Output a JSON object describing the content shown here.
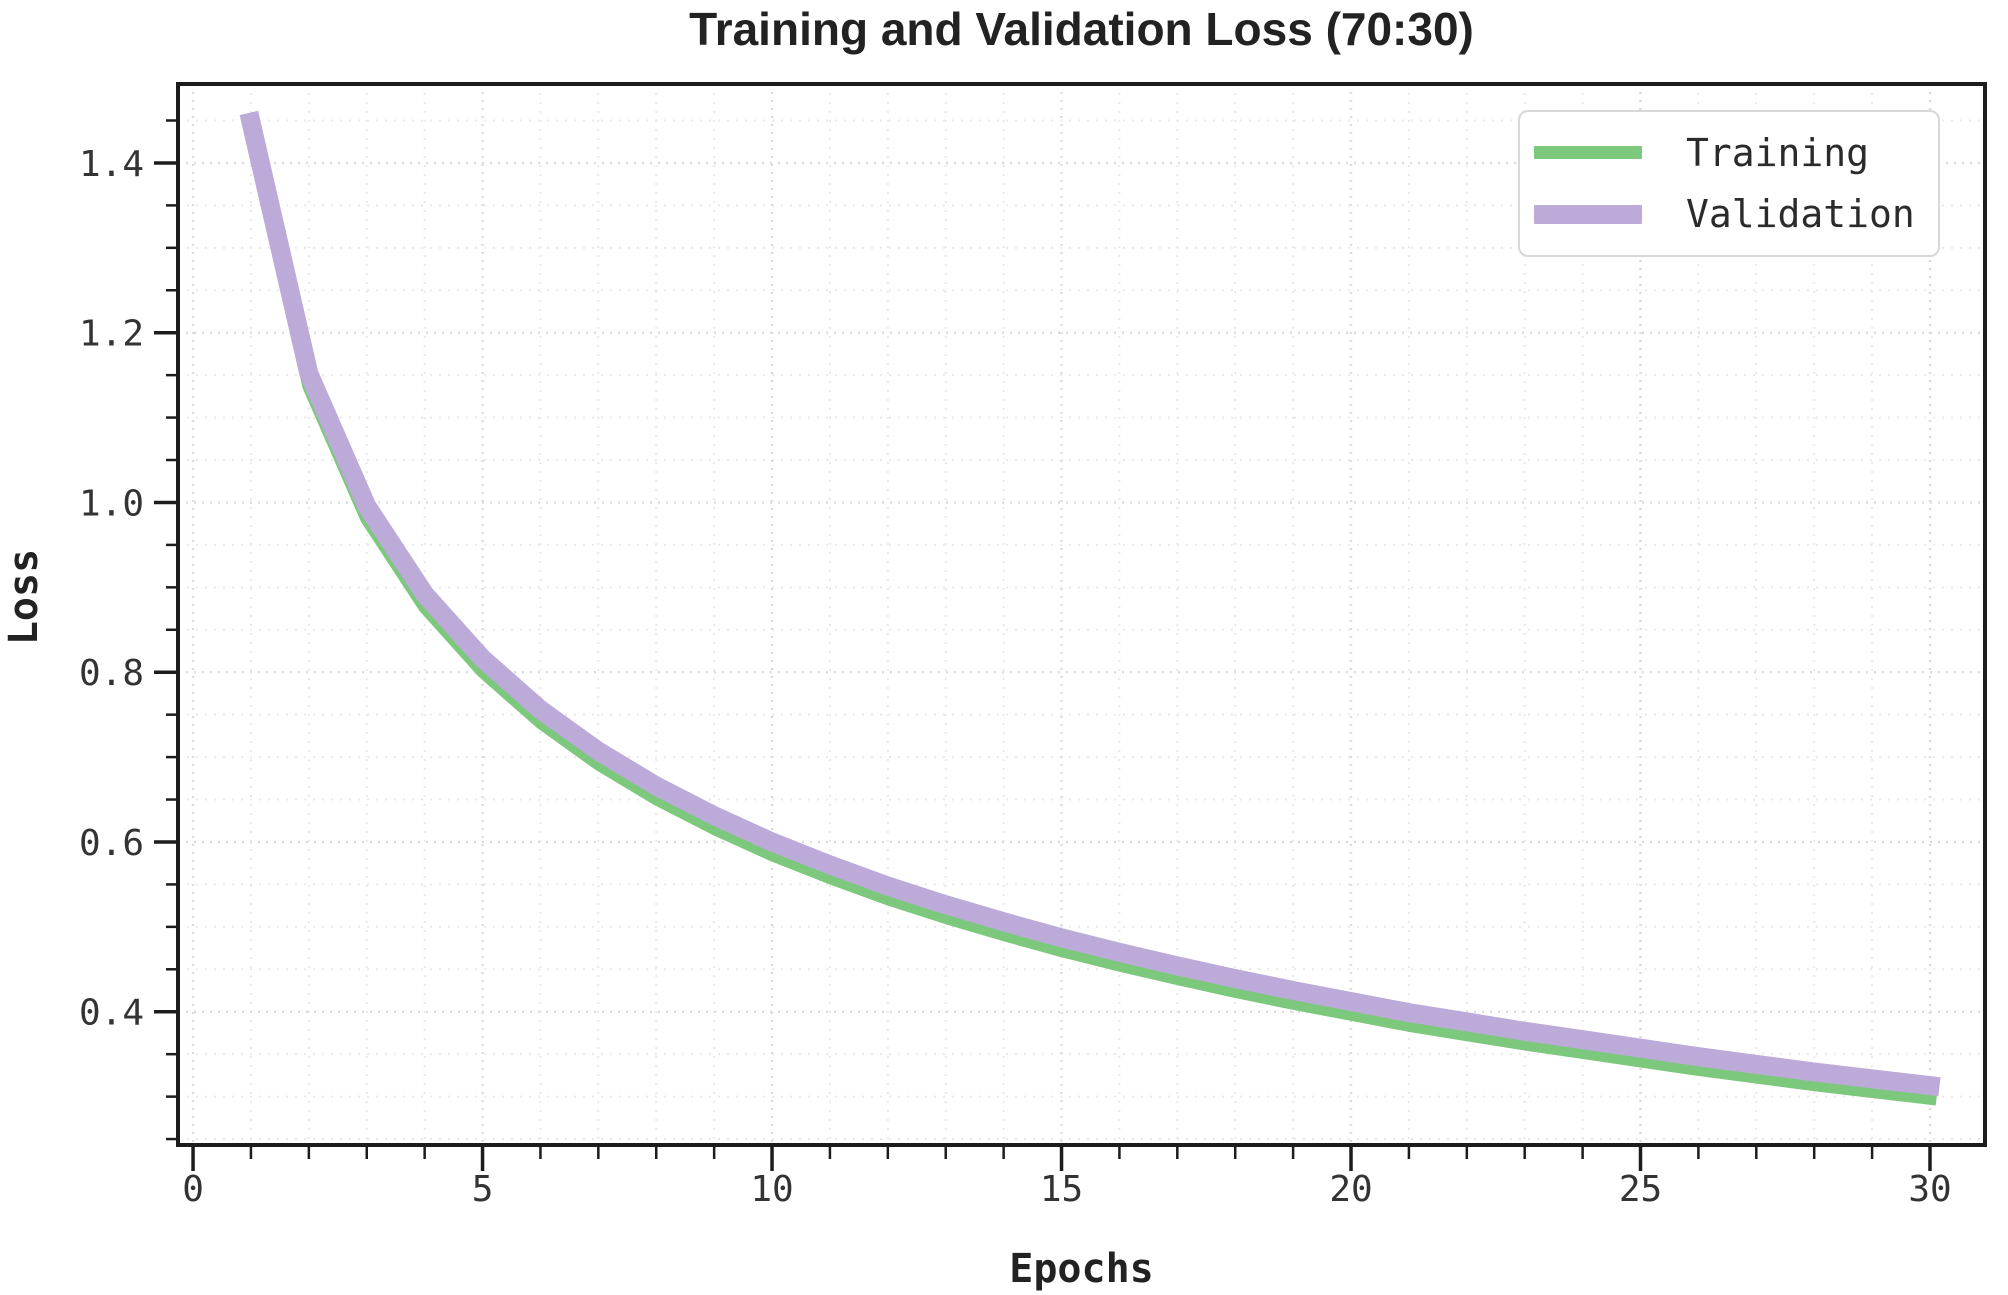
{
  "chart_data": {
    "type": "line",
    "title": "Training and Validation Loss (70:30)",
    "xlabel": "Epochs",
    "ylabel": "Loss",
    "x": [
      1,
      2,
      3,
      4,
      5,
      6,
      7,
      8,
      9,
      10,
      11,
      12,
      13,
      14,
      15,
      16,
      17,
      18,
      19,
      20,
      21,
      22,
      23,
      24,
      25,
      26,
      27,
      28,
      29,
      30
    ],
    "series": [
      {
        "name": "Training",
        "color": "#7cc87c",
        "linewidth": 13,
        "values": [
          1.435,
          1.137,
          0.981,
          0.877,
          0.801,
          0.741,
          0.692,
          0.651,
          0.616,
          0.585,
          0.558,
          0.533,
          0.511,
          0.491,
          0.472,
          0.455,
          0.439,
          0.424,
          0.41,
          0.397,
          0.384,
          0.373,
          0.362,
          0.352,
          0.342,
          0.332,
          0.323,
          0.314,
          0.306,
          0.298
        ]
      },
      {
        "name": "Validation",
        "color": "#bcaad9",
        "linewidth": 19,
        "values": [
          1.448,
          1.152,
          0.996,
          0.892,
          0.816,
          0.756,
          0.707,
          0.666,
          0.631,
          0.6,
          0.573,
          0.548,
          0.526,
          0.506,
          0.487,
          0.47,
          0.454,
          0.439,
          0.425,
          0.412,
          0.399,
          0.388,
          0.377,
          0.367,
          0.357,
          0.347,
          0.338,
          0.329,
          0.321,
          0.313
        ]
      }
    ],
    "xlim": [
      -0.26,
      30.95
    ],
    "ylim": [
      0.243,
      1.493
    ],
    "xticks": [
      0,
      5,
      10,
      15,
      20,
      25,
      30
    ],
    "xtick_labels": [
      "0",
      "5",
      "10",
      "15",
      "20",
      "25",
      "30"
    ],
    "yticks": [
      0.4,
      0.6,
      0.8,
      1.0,
      1.2,
      1.4
    ],
    "ytick_labels": [
      "0.4",
      "0.6",
      "0.8",
      "1.0",
      "1.2",
      "1.4"
    ],
    "x_minor_step": 1,
    "y_minor_step": 0.05,
    "grid": "major+minor",
    "legend_position": "upper right",
    "colors": {
      "spine": "#1c1c1c",
      "tick_label": "#333333",
      "grid_major": "#dcdcdc",
      "grid_minor": "#e9e9e9",
      "legend_border": "#d8d8d8"
    }
  }
}
